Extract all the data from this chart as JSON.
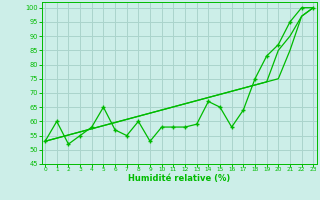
{
  "xlabel": "Humidité relative (%)",
  "background_color": "#cceee8",
  "grid_color": "#aad4cc",
  "line_color": "#00bb00",
  "x": [
    0,
    1,
    2,
    3,
    4,
    5,
    6,
    7,
    8,
    9,
    10,
    11,
    12,
    13,
    14,
    15,
    16,
    17,
    18,
    19,
    20,
    21,
    22,
    23
  ],
  "line1": [
    53,
    60,
    52,
    55,
    58,
    65,
    57,
    55,
    60,
    53,
    58,
    58,
    58,
    59,
    67,
    65,
    58,
    64,
    75,
    83,
    87,
    95,
    100,
    100
  ],
  "line2": [
    53,
    54.1,
    55.2,
    56.3,
    57.4,
    58.5,
    59.6,
    60.7,
    61.8,
    62.9,
    64.0,
    65.1,
    66.2,
    67.3,
    68.4,
    69.5,
    70.6,
    71.7,
    72.8,
    73.9,
    85.0,
    90.0,
    97.0,
    100
  ],
  "line3": [
    53,
    54.1,
    55.2,
    56.3,
    57.4,
    58.5,
    59.6,
    60.7,
    61.8,
    62.9,
    64.0,
    65.1,
    66.2,
    67.3,
    68.4,
    69.5,
    70.6,
    71.7,
    72.8,
    73.9,
    75.0,
    85.0,
    97.0,
    100
  ],
  "ylim": [
    45,
    102
  ],
  "yticks": [
    45,
    50,
    55,
    60,
    65,
    70,
    75,
    80,
    85,
    90,
    95,
    100
  ],
  "xticks": [
    0,
    1,
    2,
    3,
    4,
    5,
    6,
    7,
    8,
    9,
    10,
    11,
    12,
    13,
    14,
    15,
    16,
    17,
    18,
    19,
    20,
    21,
    22,
    23
  ],
  "xlim": [
    -0.3,
    23.3
  ]
}
